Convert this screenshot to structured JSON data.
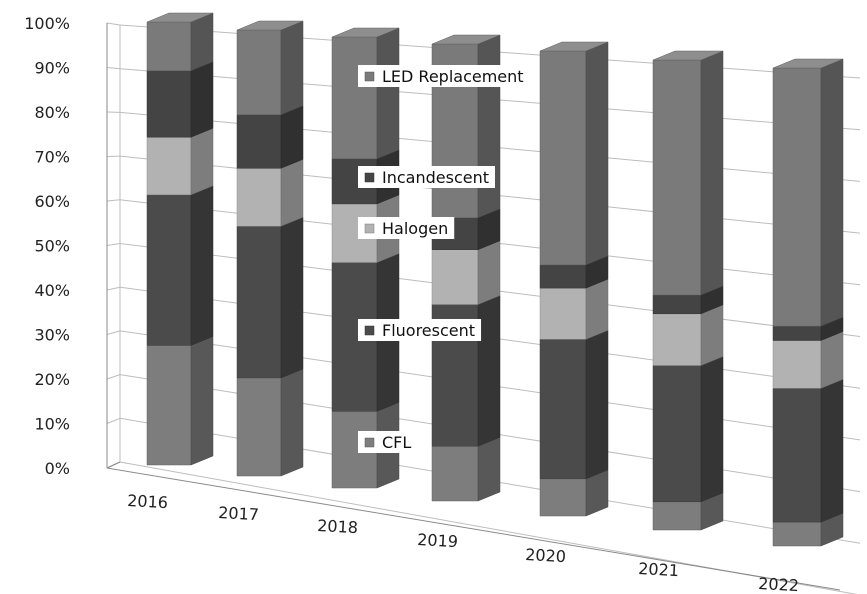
{
  "chart_data": {
    "type": "bar",
    "stacked": true,
    "percent": true,
    "three_d": true,
    "categories": [
      "2016",
      "2017",
      "2018",
      "2019",
      "2020",
      "2021",
      "2022"
    ],
    "series": [
      {
        "name": "CFL",
        "color": "#7d7d7d",
        "values": [
          27,
          22,
          17,
          12,
          8,
          6,
          5
        ]
      },
      {
        "name": "Fluorescent",
        "color": "#4b4b4b",
        "values": [
          34,
          34,
          33,
          31,
          30,
          29,
          28
        ]
      },
      {
        "name": "Halogen",
        "color": "#b2b2b2",
        "values": [
          13,
          13,
          13,
          12,
          11,
          11,
          10
        ]
      },
      {
        "name": "Incandescent",
        "color": "#444444",
        "values": [
          15,
          12,
          10,
          7,
          5,
          4,
          3
        ]
      },
      {
        "name": "LED Replacement",
        "color": "#7a7a7a",
        "values": [
          11,
          19,
          27,
          38,
          46,
          50,
          54
        ]
      }
    ],
    "yticks": [
      "0%",
      "10%",
      "20%",
      "30%",
      "40%",
      "50%",
      "60%",
      "70%",
      "80%",
      "90%",
      "100%"
    ],
    "ylim": [
      0,
      100
    ],
    "grid": true,
    "legend": "inside, over the third column"
  }
}
